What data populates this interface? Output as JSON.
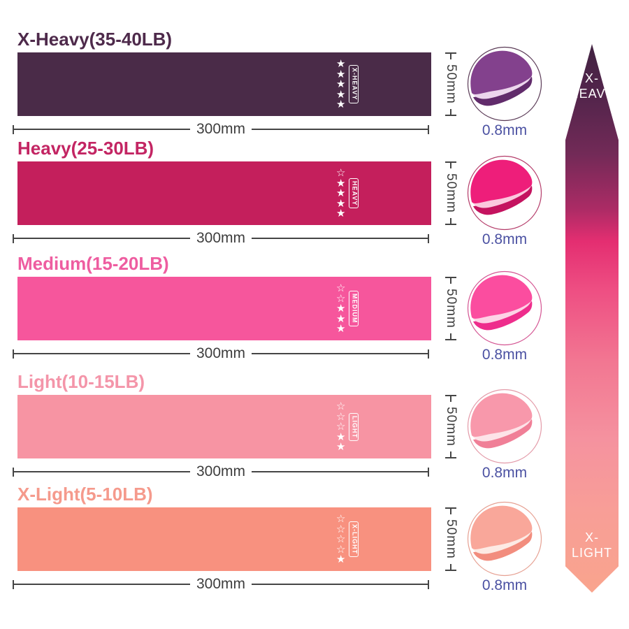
{
  "labels": {
    "width_dim": "300mm",
    "height_dim": "50mm",
    "thickness_dim": "0.8mm"
  },
  "bands": [
    {
      "title": "X-Heavy(35-40LB)",
      "tag": "X-HEAVY",
      "stars_filled": 5,
      "stars_total": 5,
      "band_color": "#4a2b48",
      "title_color": "#4e2a4b",
      "fold": {
        "base": "#83418d",
        "dark": "#612b6b",
        "edge": "#ecd6ed",
        "ring": "#5a3a56"
      }
    },
    {
      "title": "Heavy(25-30LB)",
      "tag": "HEAVY",
      "stars_filled": 4,
      "stars_total": 5,
      "band_color": "#c41f5c",
      "title_color": "#c32563",
      "fold": {
        "base": "#ee1e7a",
        "dark": "#c4135f",
        "edge": "#fbc9de",
        "ring": "#b43b69"
      }
    },
    {
      "title": "Medium(15-20LB)",
      "tag": "MEDIUM",
      "stars_filled": 3,
      "stars_total": 5,
      "band_color": "#f6569c",
      "title_color": "#ee5da0",
      "fold": {
        "base": "#fb4d9f",
        "dark": "#ee2d8c",
        "edge": "#fdd3e6",
        "ring": "#d45492"
      }
    },
    {
      "title": "Light(10-15LB)",
      "tag": "LIGHT",
      "stars_filled": 2,
      "stars_total": 5,
      "band_color": "#f794a3",
      "title_color": "#f495a9",
      "fold": {
        "base": "#f898ab",
        "dark": "#f07f97",
        "edge": "#fde3e8",
        "ring": "#e39aa8"
      }
    },
    {
      "title": "X-Light(5-10LB)",
      "tag": "X-LIGHT",
      "stars_filled": 1,
      "stars_total": 5,
      "band_color": "#f8917f",
      "title_color": "#f59a8c",
      "fold": {
        "base": "#f9a79a",
        "dark": "#f28d7e",
        "edge": "#fdeae4",
        "ring": "#e6a092"
      }
    }
  ],
  "arrow": {
    "top_label": [
      "X-",
      "HEAVY"
    ],
    "bottom_label": [
      "X-",
      "LIGHT"
    ],
    "gradient_stops": [
      "#422342",
      "#54254c",
      "#722a57",
      "#ab2b65",
      "#e42e71",
      "#ee4f83",
      "#f27792",
      "#f5929f",
      "#f89e97",
      "#f9a48d"
    ]
  }
}
